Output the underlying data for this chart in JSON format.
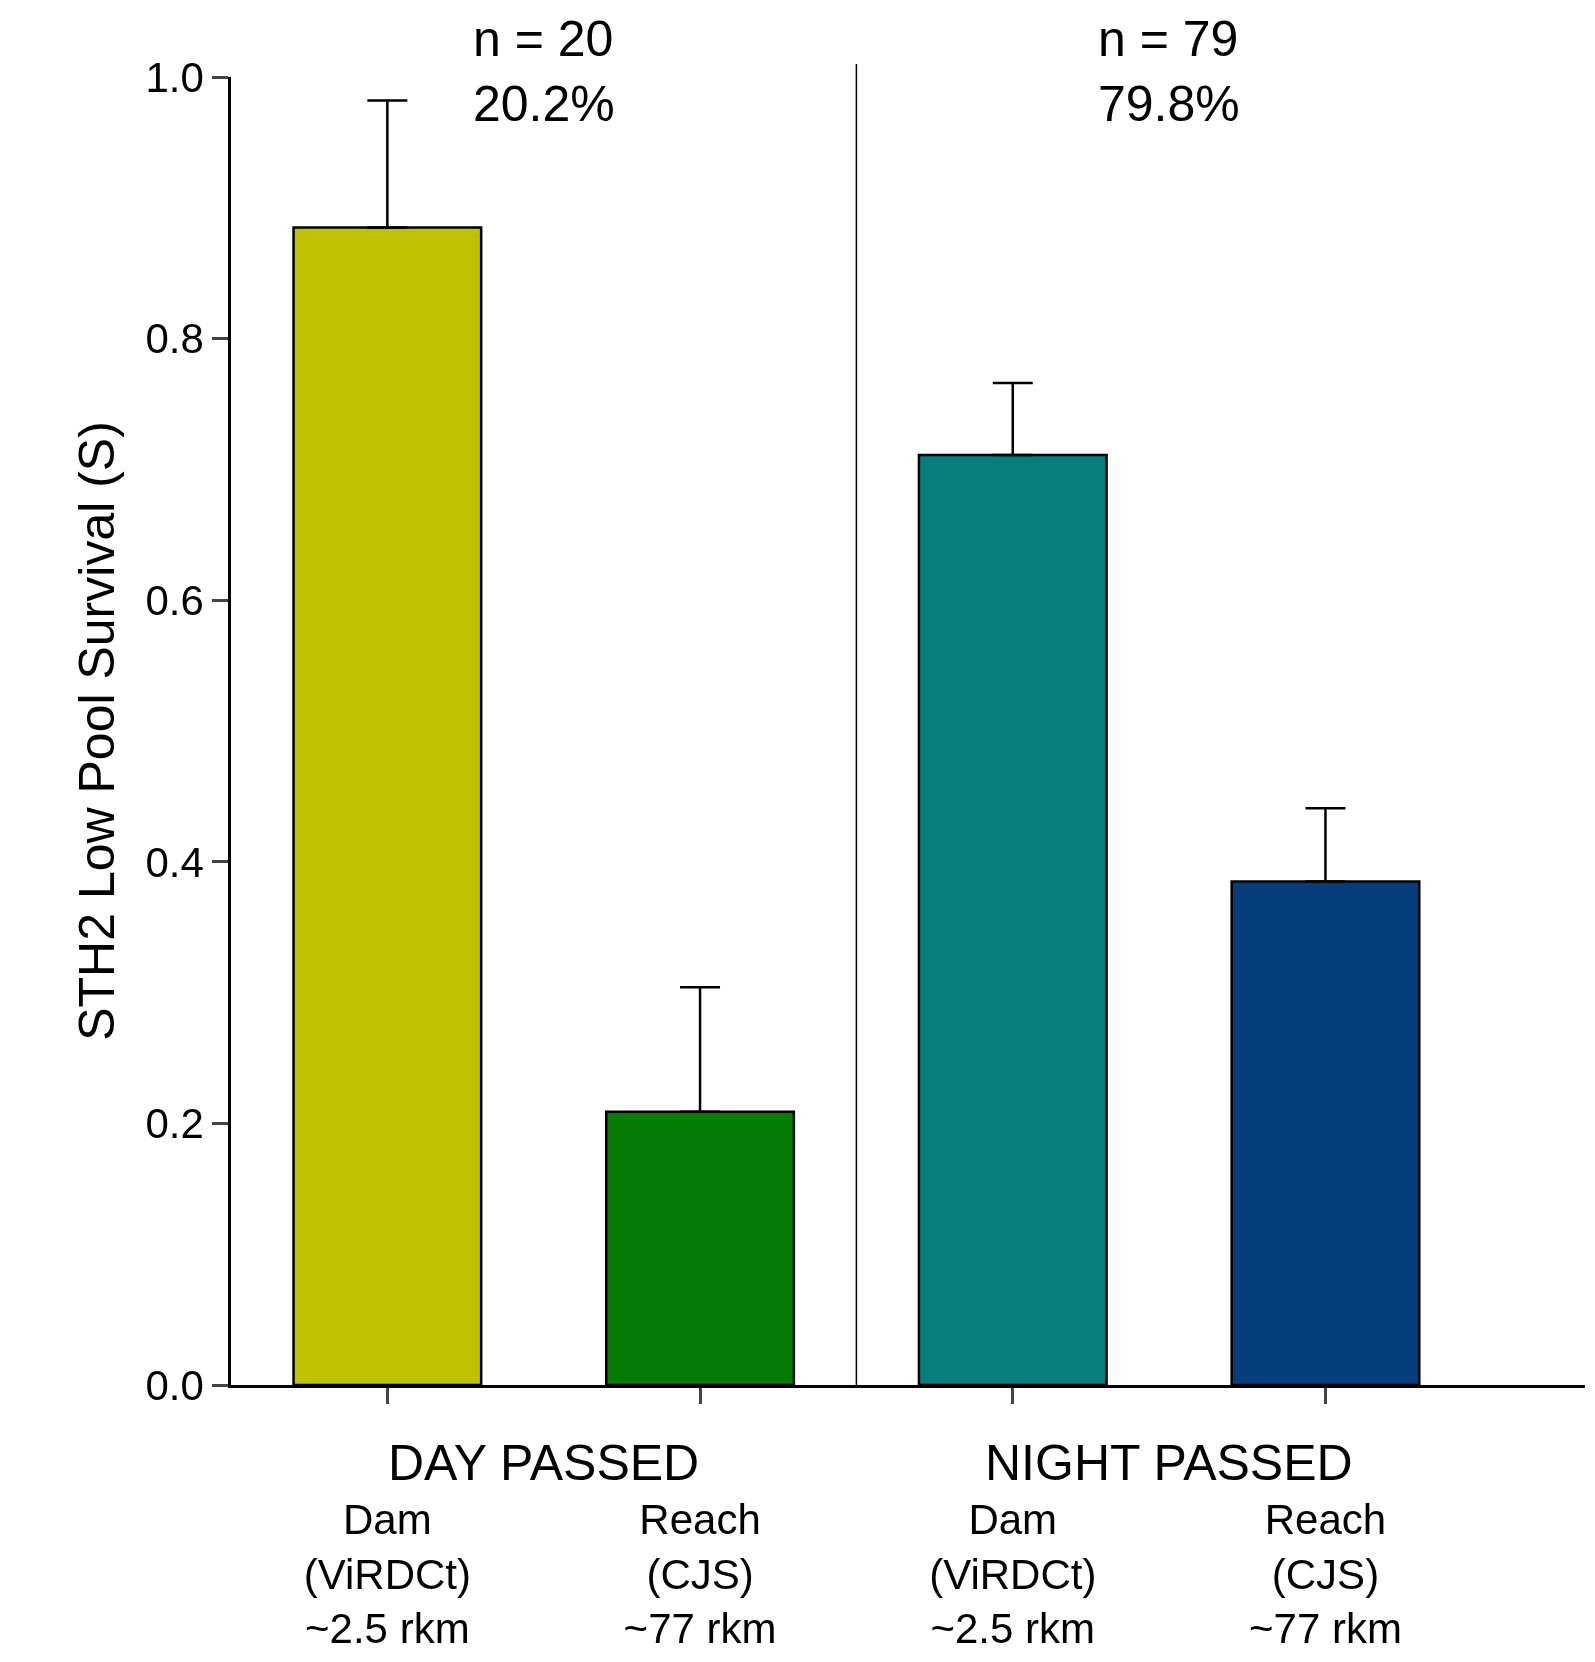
{
  "chart_data": {
    "type": "bar",
    "ylabel": "STH2 Low Pool Survival (S)",
    "categories": [
      "Dam\n(ViRDCt)\n~2.5 rkm",
      "Reach\n(CJS)\n~77 rkm",
      "Dam\n(ViRDCt)\n~2.5 rkm",
      "Reach\n(CJS)\n~77 rkm"
    ],
    "values": [
      0.885,
      0.209,
      0.711,
      0.385
    ],
    "colors": [
      "#bfc200",
      "#067c06",
      "#067e7e",
      "#043c7c"
    ],
    "errors": [
      [
        0.885,
        0.982
      ],
      [
        0.209,
        0.304
      ],
      [
        0.711,
        0.766
      ],
      [
        0.385,
        0.441
      ]
    ],
    "ylim": [
      0,
      1.0
    ],
    "yticks": [
      {
        "value": 0,
        "label": "0.0"
      },
      {
        "value": 0.2,
        "label": "0.2"
      },
      {
        "value": 0.4,
        "label": "0.4"
      },
      {
        "value": 0.6,
        "label": "0.6"
      },
      {
        "value": 0.8,
        "label": "0.8"
      },
      {
        "value": 1.0,
        "label": "1.0"
      }
    ],
    "annotations": [
      "n = 20\n20.2%",
      "n = 79\n79.8%",
      "DAY PASSED",
      "NIGHT PASSED"
    ]
  }
}
